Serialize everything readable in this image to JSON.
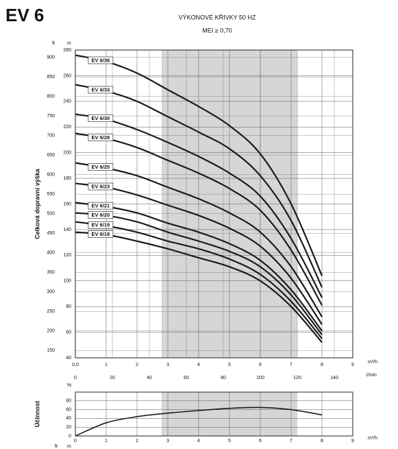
{
  "header": {
    "title": "EV 6",
    "subtitle": "VÝKONOVÉ KŘIVKY 50 HZ",
    "note": "MEI ≥ 0,70"
  },
  "chart_data": [
    {
      "type": "line",
      "y_label": "Celková dopravní výška",
      "y_unit": "m",
      "y2_unit": "ft",
      "x_unit": "m³/h",
      "x2_unit": "l/min",
      "x": [
        0,
        1,
        2,
        3,
        4,
        5,
        6,
        7,
        8
      ],
      "xlim": [
        0,
        9
      ],
      "xticks": [
        {
          "value": 0,
          "label": "0,0"
        },
        1,
        2,
        3,
        4,
        5,
        6,
        7,
        8,
        9
      ],
      "x2lim": [
        0,
        150
      ],
      "x2ticks": [
        0,
        20,
        40,
        60,
        80,
        100,
        120,
        140
      ],
      "ylim": [
        40,
        280
      ],
      "yticks": [
        40,
        60,
        80,
        100,
        120,
        140,
        160,
        180,
        200,
        220,
        240,
        260,
        280
      ],
      "y2lim": [
        131.23,
        918.64
      ],
      "y2ticks": [
        150,
        200,
        250,
        300,
        350,
        400,
        450,
        500,
        550,
        600,
        650,
        700,
        750,
        800,
        850,
        900
      ],
      "highlight": [
        2.8,
        7.2
      ],
      "grid": true,
      "series": [
        {
          "name": "EV 6/36",
          "color": "#1a1a1a",
          "values": [
            276,
            271,
            262,
            249,
            236,
            221,
            199,
            160,
            104
          ]
        },
        {
          "name": "EV 6/33",
          "color": "#1a1a1a",
          "values": [
            253,
            248,
            240,
            228,
            216,
            203,
            182,
            147,
            95
          ]
        },
        {
          "name": "EV 6/30",
          "color": "#1a1a1a",
          "values": [
            230,
            226,
            218,
            208,
            197,
            184,
            166,
            133,
            87
          ]
        },
        {
          "name": "EV 6/28",
          "color": "#1a1a1a",
          "values": [
            215,
            211,
            204,
            194,
            184,
            172,
            155,
            124,
            81
          ]
        },
        {
          "name": "EV 6/25",
          "color": "#1a1a1a",
          "values": [
            192,
            188,
            182,
            173,
            164,
            153,
            138,
            111,
            72
          ]
        },
        {
          "name": "EV 6/23",
          "color": "#1a1a1a",
          "values": [
            176,
            173,
            167,
            159,
            151,
            141,
            127,
            102,
            66
          ]
        },
        {
          "name": "EV 6/21",
          "color": "#1a1a1a",
          "values": [
            161,
            158,
            153,
            145,
            138,
            129,
            116,
            93,
            61
          ]
        },
        {
          "name": "EV 6/20",
          "color": "#1a1a1a",
          "values": [
            153,
            151,
            146,
            138,
            131,
            123,
            111,
            89,
            58
          ]
        },
        {
          "name": "EV 6/19",
          "color": "#1a1a1a",
          "values": [
            146,
            143,
            138,
            131,
            125,
            117,
            105,
            84,
            55
          ]
        },
        {
          "name": "EV 6/18",
          "color": "#1a1a1a",
          "values": [
            138,
            136,
            131,
            125,
            118,
            111,
            100,
            80,
            52
          ]
        }
      ]
    },
    {
      "type": "line",
      "y_label": "Účinnost",
      "y_unit": "%",
      "x_unit": "m³/h",
      "footer_units": [
        "ft",
        "m"
      ],
      "x": [
        0,
        1,
        2,
        3,
        4,
        5,
        6,
        7,
        8
      ],
      "xlim": [
        0,
        9
      ],
      "xticks": [
        0,
        1,
        2,
        3,
        4,
        5,
        6,
        7,
        8,
        9
      ],
      "ylim": [
        0,
        100
      ],
      "yticks": [
        0,
        20,
        40,
        60,
        80
      ],
      "highlight": [
        2.8,
        7.2
      ],
      "grid": true,
      "series": [
        {
          "color": "#1a1a1a",
          "values": [
            0,
            30,
            44,
            52,
            58,
            63,
            65,
            60,
            48
          ]
        }
      ]
    }
  ]
}
